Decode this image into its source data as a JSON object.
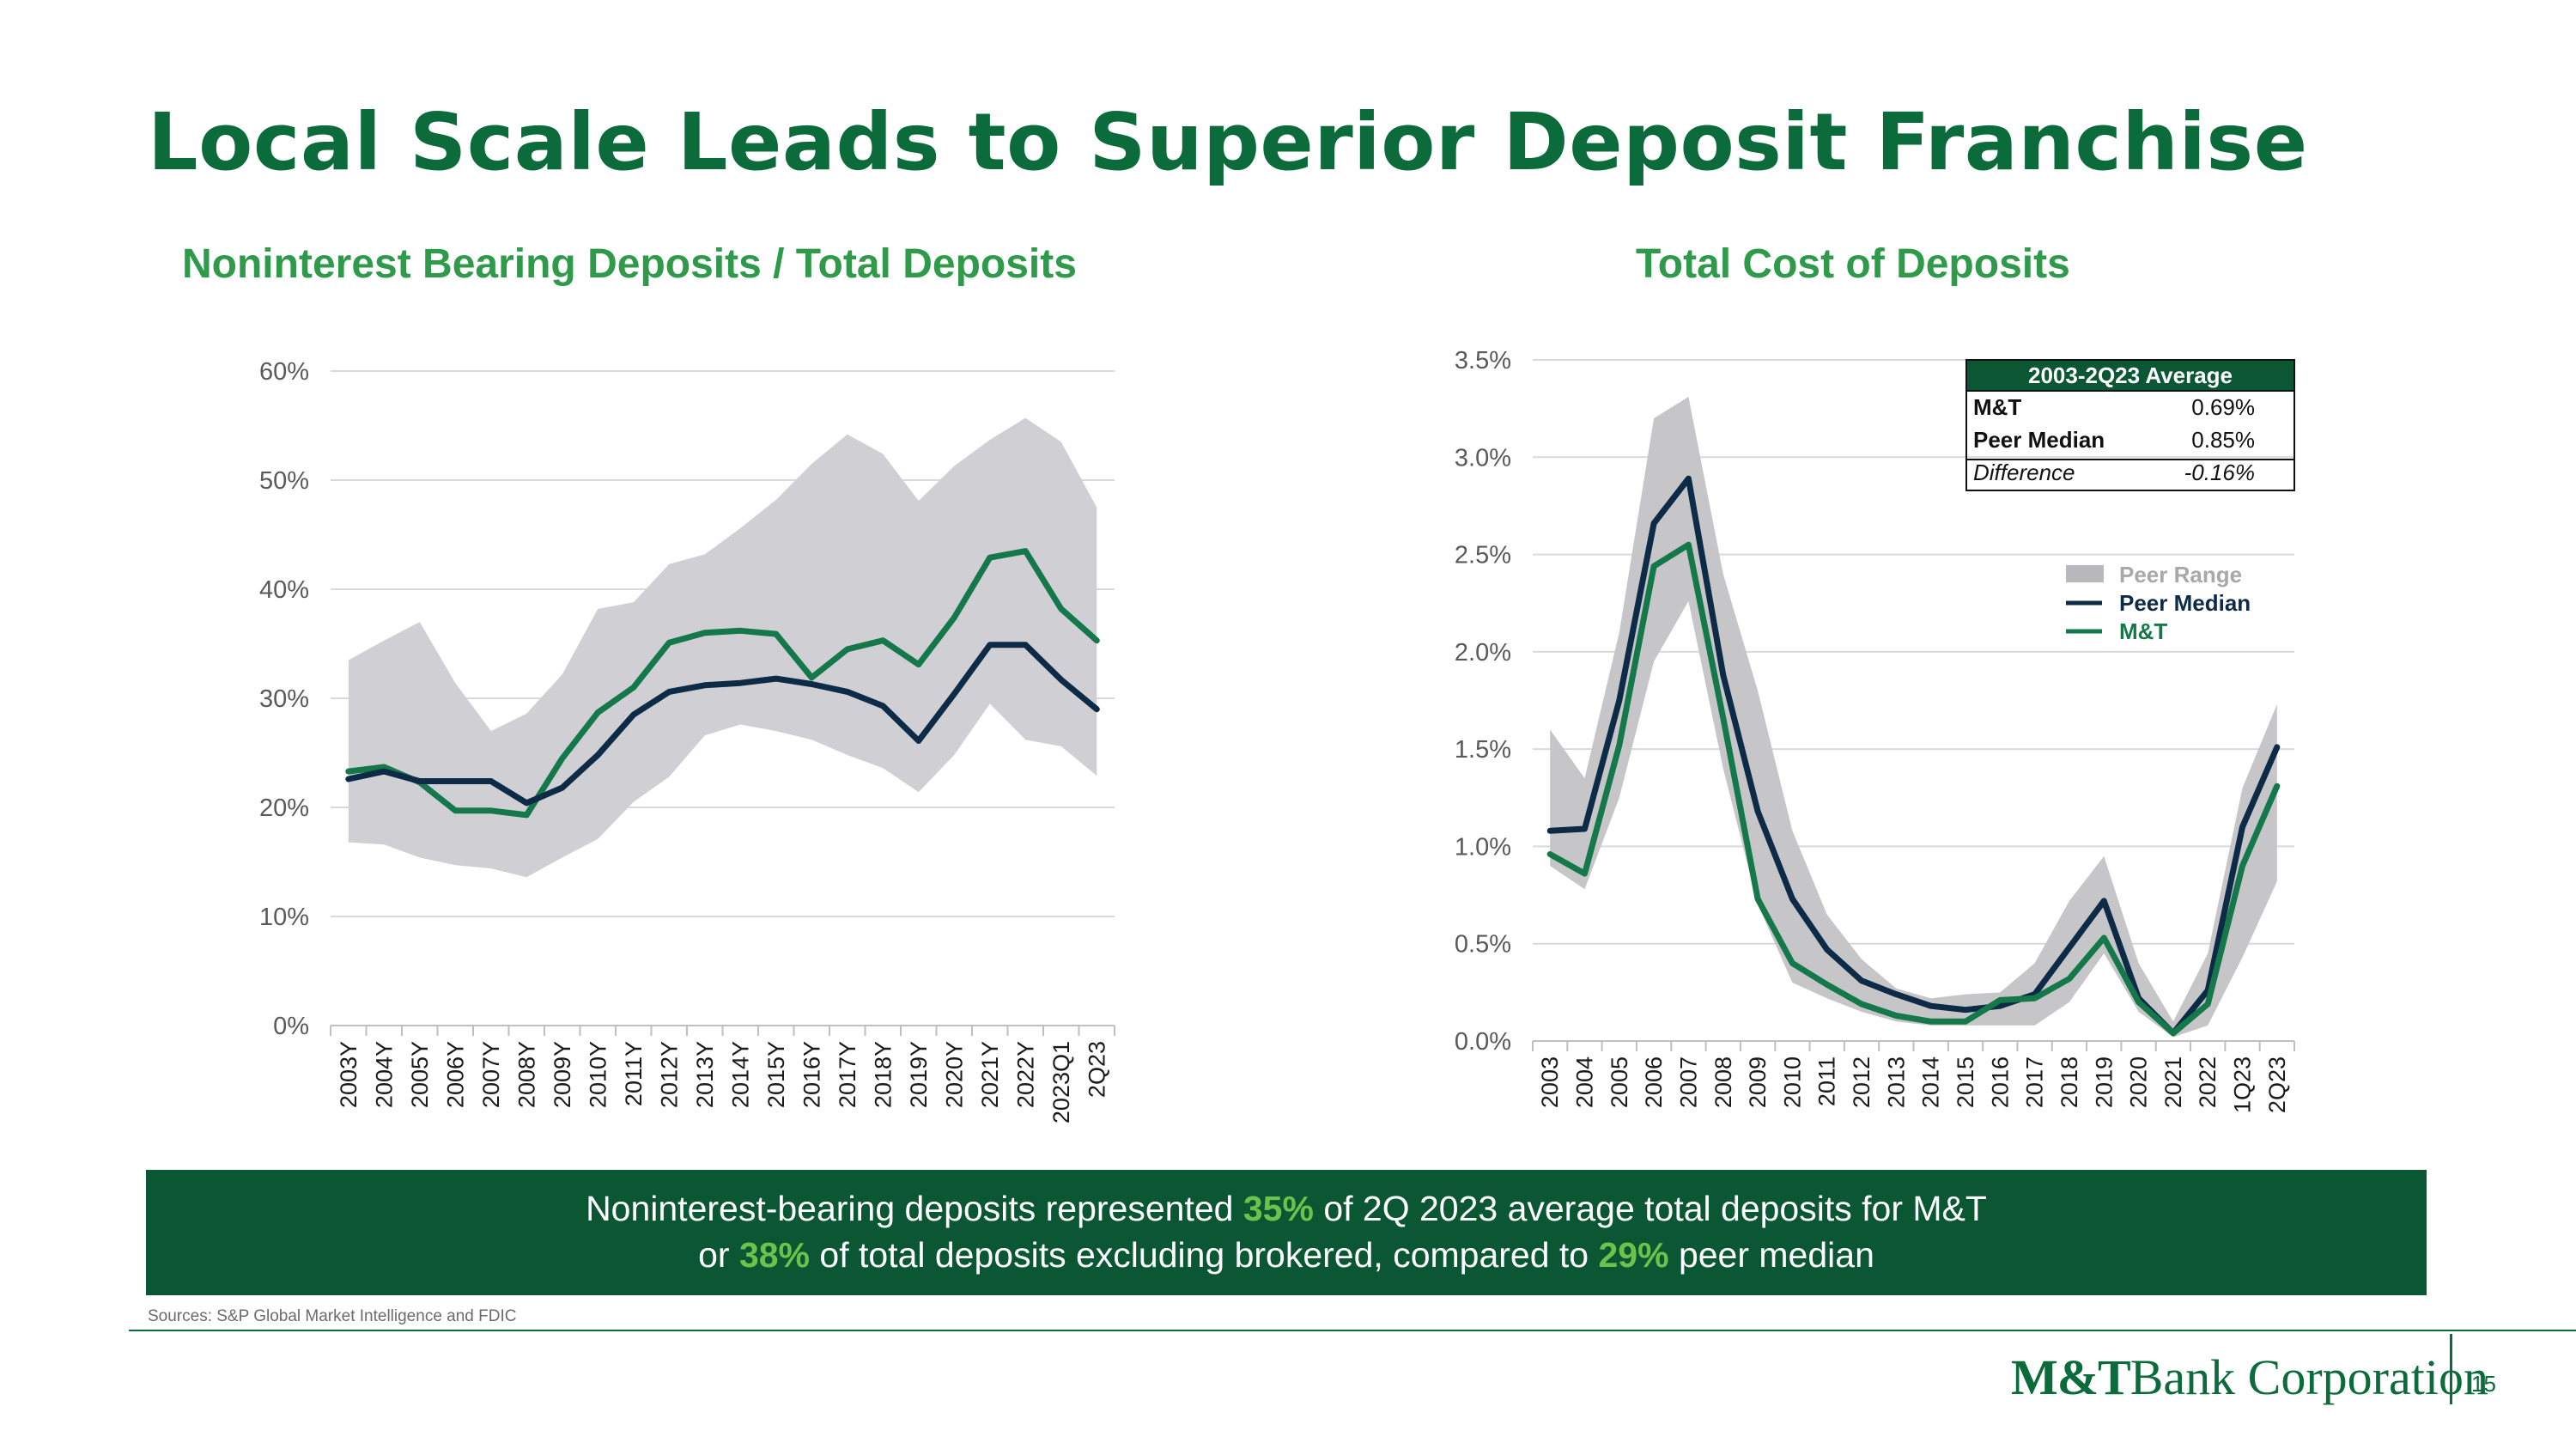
{
  "page": {
    "title": "Local Scale Leads to Superior Deposit Franchise",
    "number": "15"
  },
  "chart_data": [
    {
      "type": "line",
      "title": "Noninterest Bearing Deposits / Total Deposits",
      "xlabel": "",
      "ylabel": "",
      "ylim": [
        0,
        60
      ],
      "yticks": [
        "0%",
        "10%",
        "20%",
        "30%",
        "40%",
        "50%",
        "60%"
      ],
      "categories": [
        "2003Y",
        "2004Y",
        "2005Y",
        "2006Y",
        "2007Y",
        "2008Y",
        "2009Y",
        "2010Y",
        "2011Y",
        "2012Y",
        "2013Y",
        "2014Y",
        "2015Y",
        "2016Y",
        "2017Y",
        "2018Y",
        "2019Y",
        "2020Y",
        "2021Y",
        "2022Y",
        "2023Q1",
        "2Q23"
      ],
      "band": {
        "name": "Peer Range",
        "color": "#d0d0d4",
        "low": [
          16.8,
          16.6,
          15.4,
          14.7,
          14.4,
          13.6,
          15.4,
          17.1,
          20.5,
          22.8,
          26.6,
          27.6,
          27.0,
          26.2,
          24.8,
          23.6,
          21.4,
          24.8,
          29.5,
          26.2,
          25.6,
          22.9
        ],
        "high": [
          33.5,
          35.3,
          37.0,
          31.4,
          27.0,
          28.6,
          32.2,
          38.2,
          38.8,
          42.3,
          43.2,
          45.6,
          48.2,
          51.5,
          54.2,
          52.4,
          48.1,
          51.3,
          53.7,
          55.7,
          53.5,
          47.5
        ]
      },
      "series": [
        {
          "name": "M&T",
          "color": "#14784a",
          "values": [
            23.3,
            23.7,
            22.3,
            19.7,
            19.7,
            19.3,
            24.5,
            28.7,
            31.0,
            35.1,
            36.0,
            36.2,
            35.9,
            31.9,
            34.5,
            35.3,
            33.1,
            37.4,
            42.9,
            43.5,
            38.2,
            35.3
          ]
        },
        {
          "name": "Peer Median",
          "color": "#0d2a47",
          "values": [
            22.6,
            23.3,
            22.4,
            22.4,
            22.4,
            20.4,
            21.8,
            24.8,
            28.5,
            30.6,
            31.2,
            31.4,
            31.8,
            31.3,
            30.6,
            29.3,
            26.1,
            30.4,
            34.9,
            34.9,
            31.7,
            29.0
          ]
        }
      ]
    },
    {
      "type": "line",
      "title": "Total Cost of Deposits",
      "xlabel": "",
      "ylabel": "",
      "ylim": [
        0,
        3.5
      ],
      "yticks": [
        "0.0%",
        "0.5%",
        "1.0%",
        "1.5%",
        "2.0%",
        "2.5%",
        "3.0%",
        "3.5%"
      ],
      "categories": [
        "2003",
        "2004",
        "2005",
        "2006",
        "2007",
        "2008",
        "2009",
        "2010",
        "2011",
        "2012",
        "2013",
        "2014",
        "2015",
        "2016",
        "2017",
        "2018",
        "2019",
        "2020",
        "2021",
        "2022",
        "1Q23",
        "2Q23"
      ],
      "band": {
        "name": "Peer Range",
        "color": "#c6c6c9",
        "low": [
          0.9,
          0.78,
          1.25,
          1.95,
          2.26,
          1.4,
          0.7,
          0.3,
          0.22,
          0.15,
          0.1,
          0.08,
          0.08,
          0.08,
          0.08,
          0.2,
          0.45,
          0.15,
          0.02,
          0.08,
          0.43,
          0.82
        ],
        "high": [
          1.6,
          1.35,
          2.1,
          3.2,
          3.31,
          2.4,
          1.8,
          1.08,
          0.65,
          0.42,
          0.27,
          0.22,
          0.24,
          0.25,
          0.4,
          0.72,
          0.95,
          0.4,
          0.1,
          0.45,
          1.3,
          1.73
        ]
      },
      "series": [
        {
          "name": "Peer Median",
          "color": "#0d2a47",
          "values": [
            1.08,
            1.09,
            1.75,
            2.66,
            2.89,
            1.88,
            1.18,
            0.73,
            0.47,
            0.31,
            0.24,
            0.18,
            0.16,
            0.18,
            0.24,
            0.48,
            0.72,
            0.22,
            0.04,
            0.26,
            1.1,
            1.51
          ]
        },
        {
          "name": "M&T",
          "color": "#14784a",
          "values": [
            0.96,
            0.86,
            1.52,
            2.44,
            2.55,
            1.66,
            0.73,
            0.4,
            0.29,
            0.19,
            0.13,
            0.1,
            0.1,
            0.21,
            0.22,
            0.32,
            0.53,
            0.2,
            0.04,
            0.19,
            0.9,
            1.31
          ]
        }
      ],
      "legend": {
        "position": "right",
        "items": [
          {
            "label": "Peer Range",
            "color": "#b9b9bd",
            "kind": "box"
          },
          {
            "label": "Peer Median",
            "color": "#0d2a47",
            "kind": "line"
          },
          {
            "label": "M&T",
            "color": "#14784a",
            "kind": "line"
          }
        ]
      },
      "average_table": {
        "header": "2003-2Q23 Average",
        "rows": [
          {
            "label": "M&T",
            "value": "0.69%"
          },
          {
            "label": "Peer Median",
            "value": "0.85%"
          },
          {
            "label": "Difference",
            "value": "-0.16%"
          }
        ]
      }
    }
  ],
  "banner": {
    "line1_a": "Noninterest-bearing deposits represented ",
    "line1_hl": "35%",
    "line1_b": " of 2Q 2023 average total deposits for M&T",
    "line2_a": "or ",
    "line2_hl1": "38%",
    "line2_b": " of total deposits excluding brokered, compared to ",
    "line2_hl2": "29%",
    "line2_c": " peer median"
  },
  "source": "Sources: S&P Global Market Intelligence and FDIC",
  "logo": {
    "mark": "M&T",
    "text": "Bank Corporation"
  }
}
